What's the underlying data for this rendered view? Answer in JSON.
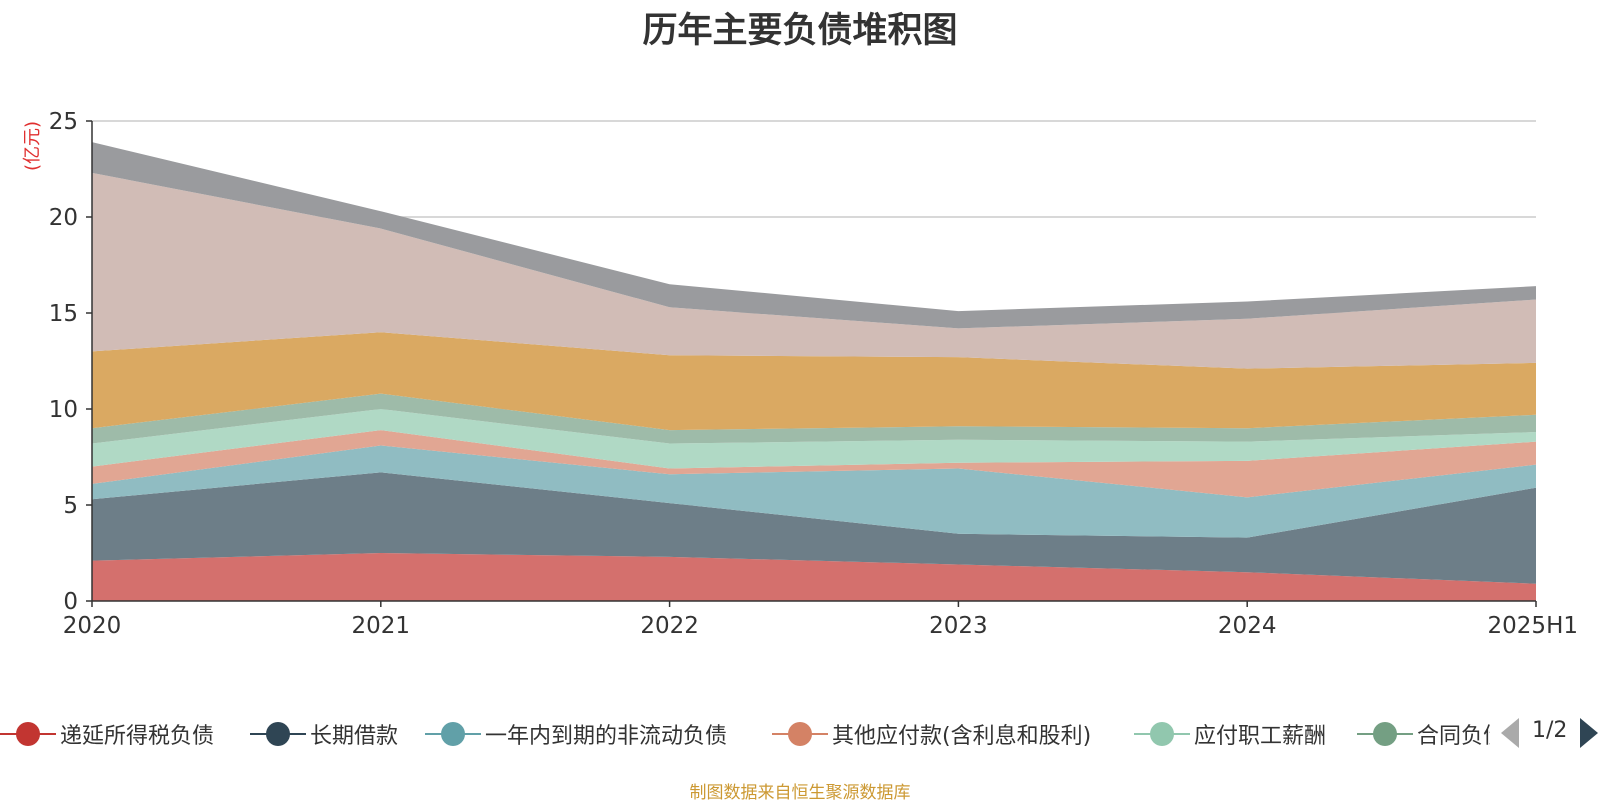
{
  "title": "历年主要负债堆积图",
  "unit": "(亿元)",
  "source": "制图数据来自恒生聚源数据库",
  "pager": {
    "text": "1/2",
    "prev_icon": "triangle-left-icon",
    "next_icon": "triangle-right-icon"
  },
  "chart_data": {
    "type": "area",
    "stacked": true,
    "x": [
      "2020",
      "2021",
      "2022",
      "2023",
      "2024",
      "2025H1"
    ],
    "ylim": [
      0,
      25
    ],
    "yticks": [
      0,
      5,
      10,
      15,
      20,
      25
    ],
    "ylabel": "(亿元)",
    "grid": true,
    "legend_position": "bottom",
    "series": [
      {
        "name": "递延所得税负债",
        "color": "#c23531",
        "fill": "#d4706d",
        "values": [
          2.1,
          2.5,
          2.3,
          1.9,
          1.5,
          0.9
        ]
      },
      {
        "name": "长期借款",
        "color": "#2f4554",
        "fill": "#6d7e88",
        "values": [
          3.2,
          4.2,
          2.8,
          1.6,
          1.8,
          5.0
        ]
      },
      {
        "name": "一年内到期的非流动负债",
        "color": "#61a0a8",
        "fill": "#90bcc2",
        "values": [
          0.8,
          1.4,
          1.5,
          3.4,
          2.1,
          1.2
        ]
      },
      {
        "name": "其他应付款(含利息和股利)",
        "color": "#d48265",
        "fill": "#e1a693",
        "values": [
          0.9,
          0.8,
          0.3,
          0.3,
          1.9,
          1.2
        ]
      },
      {
        "name": "应付职工薪酬",
        "color": "#91c7ae",
        "fill": "#b0d9c5",
        "values": [
          1.2,
          1.1,
          1.3,
          1.2,
          1.0,
          0.5
        ]
      },
      {
        "name": "合同负债",
        "color": "#749f83",
        "fill": "#9ebba9",
        "values": [
          0.8,
          0.8,
          0.7,
          0.7,
          0.7,
          0.9
        ]
      },
      {
        "name": "",
        "color": "#ca8622",
        "fill": "#daa962",
        "values": [
          4.0,
          3.2,
          3.9,
          3.6,
          3.1,
          2.7
        ]
      },
      {
        "name": "",
        "color": "#bda29a",
        "fill": "#d1bcb6",
        "values": [
          9.3,
          5.4,
          2.5,
          1.5,
          2.6,
          3.3
        ]
      },
      {
        "name": "",
        "color": "#6e7074",
        "fill": "#9a9b9e",
        "values": [
          1.6,
          0.9,
          1.2,
          0.9,
          0.9,
          0.7
        ]
      }
    ]
  }
}
